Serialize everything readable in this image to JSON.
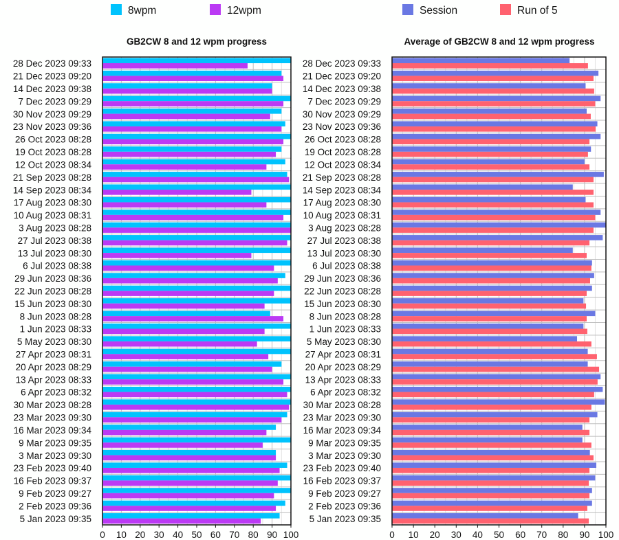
{
  "chart_data": [
    {
      "type": "bar",
      "orientation": "horizontal",
      "title": "GB2CW 8 and 12 wpm progress",
      "xlabel": "",
      "ylabel": "",
      "xlim": [
        0,
        100
      ],
      "xticks": [
        "0",
        "10",
        "20",
        "30",
        "40",
        "50",
        "60",
        "70",
        "80",
        "90",
        "100"
      ],
      "grid": true,
      "legend_position": "top",
      "categories": [
        "28 Dec 2023 09:33",
        "21 Dec 2023 09:20",
        "14 Dec 2023 09:38",
        "7 Dec 2023 09:29",
        "30 Nov 2023 09:29",
        "23 Nov 2023 09:36",
        "26 Oct 2023 08:28",
        "19 Oct 2023 08:28",
        "12 Oct 2023 08:34",
        "21 Sep 2023 08:28",
        "14 Sep 2023 08:34",
        "17 Aug 2023 08:30",
        "10 Aug 2023 08:31",
        "3 Aug 2023 08:28",
        "27 Jul 2023 08:38",
        "13 Jul 2023 08:30",
        "6 Jul 2023 08:38",
        "29 Jun 2023 08:36",
        "22 Jun 2023 08:28",
        "15 Jun 2023 08:30",
        "8 Jun 2023 08:28",
        "1 Jun 2023 08:33",
        "5 May 2023 08:30",
        "27 Apr 2023 08:31",
        "20 Apr 2023 08:29",
        "13 Apr 2023 08:33",
        "6 Apr 2023 08:32",
        "30 Mar 2023 08:28",
        "23 Mar 2023 09:30",
        "16 Mar 2023 09:34",
        "9 Mar 2023 09:35",
        "3 Mar 2023 09:30",
        "23 Feb 2023 09:40",
        "16 Feb 2023 09:37",
        "9 Feb 2023 09:27",
        "2 Feb 2023 09:36",
        "5 Jan 2023 09:35"
      ],
      "series": [
        {
          "name": "8wpm",
          "color": "#00c3fd",
          "values": [
            100,
            95,
            90,
            100,
            95,
            97,
            100,
            95,
            97,
            98,
            100,
            100,
            100,
            100,
            100,
            100,
            100,
            97,
            100,
            100,
            89,
            100,
            100,
            100,
            95,
            100,
            100,
            100,
            98,
            92,
            100,
            92,
            98,
            100,
            100,
            97,
            94
          ]
        },
        {
          "name": "12wpm",
          "color": "#bb3af4",
          "values": [
            77,
            96,
            90,
            96,
            89,
            95,
            96,
            92,
            87,
            99,
            79,
            87,
            96,
            100,
            98,
            79,
            91,
            93,
            91,
            86,
            96,
            86,
            82,
            88,
            90,
            96,
            98,
            99,
            95,
            87,
            85,
            92,
            94,
            93,
            91,
            92,
            84
          ]
        }
      ]
    },
    {
      "type": "bar",
      "orientation": "horizontal",
      "title": "Average of GB2CW 8 and 12 wpm progress",
      "xlabel": "",
      "ylabel": "",
      "xlim": [
        0,
        100
      ],
      "xticks": [
        "0",
        "10",
        "20",
        "30",
        "40",
        "50",
        "60",
        "70",
        "80",
        "90",
        "100"
      ],
      "grid": true,
      "legend_position": "top",
      "categories": [
        "28 Dec 2023 09:33",
        "21 Dec 2023 09:20",
        "14 Dec 2023 09:38",
        "7 Dec 2023 09:29",
        "30 Nov 2023 09:29",
        "23 Nov 2023 09:36",
        "26 Oct 2023 08:28",
        "19 Oct 2023 08:28",
        "12 Oct 2023 08:34",
        "21 Sep 2023 08:28",
        "14 Sep 2023 08:34",
        "17 Aug 2023 08:30",
        "10 Aug 2023 08:31",
        "3 Aug 2023 08:28",
        "27 Jul 2023 08:38",
        "13 Jul 2023 08:30",
        "6 Jul 2023 08:38",
        "29 Jun 2023 08:36",
        "22 Jun 2023 08:28",
        "15 Jun 2023 08:30",
        "8 Jun 2023 08:28",
        "1 Jun 2023 08:33",
        "5 May 2023 08:30",
        "27 Apr 2023 08:31",
        "20 Apr 2023 08:29",
        "13 Apr 2023 08:33",
        "6 Apr 2023 08:32",
        "30 Mar 2023 08:28",
        "23 Mar 2023 09:30",
        "16 Mar 2023 09:34",
        "9 Mar 2023 09:35",
        "3 Mar 2023 09:30",
        "23 Feb 2023 09:40",
        "16 Feb 2023 09:37",
        "9 Feb 2023 09:27",
        "2 Feb 2023 09:36",
        "5 Jan 2023 09:35"
      ],
      "series": [
        {
          "name": "Session",
          "color": "#6a78e3",
          "values": [
            83,
            96.5,
            90.5,
            97.5,
            91,
            96,
            97.5,
            93,
            90,
            99,
            84.5,
            90.5,
            97.5,
            100,
            98.5,
            84.5,
            93.5,
            94.5,
            93.5,
            89.5,
            95,
            89.5,
            86.5,
            91.5,
            91.5,
            97.5,
            98.5,
            99.5,
            96,
            89,
            89,
            92.5,
            95.5,
            95,
            93.5,
            93.5,
            87
          ]
        },
        {
          "name": "Run of 5",
          "color": "#ff626f",
          "values": [
            91.6,
            94.2,
            94.5,
            95,
            92.9,
            95.2,
            92.3,
            91.6,
            92.3,
            94.2,
            94.2,
            94.2,
            95,
            94.2,
            92.3,
            91,
            93.2,
            92.6,
            91,
            90.7,
            91,
            91.3,
            93.2,
            95.8,
            96.8,
            96.1,
            94.5,
            93.2,
            92.3,
            92.3,
            93.2,
            94.2,
            92.3,
            92,
            92.3,
            91.3,
            92
          ]
        }
      ]
    }
  ]
}
